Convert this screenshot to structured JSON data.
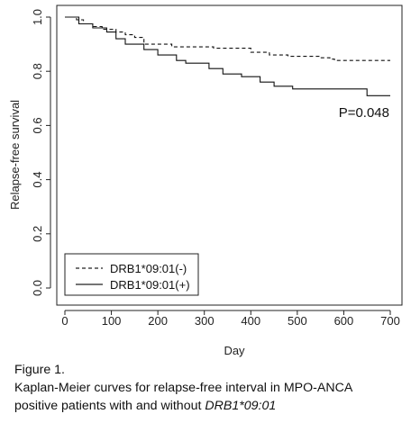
{
  "chart_data": {
    "type": "line",
    "xlabel": "Day",
    "ylabel": "Relapse-free survival",
    "xlim": [
      0,
      700
    ],
    "ylim": [
      0,
      1
    ],
    "x_ticks": [
      0,
      100,
      200,
      300,
      400,
      500,
      600,
      700
    ],
    "y_ticks": [
      0.0,
      0.2,
      0.4,
      0.6,
      0.8,
      1.0
    ],
    "grid": false,
    "legend_position": "bottom-left",
    "annotation": "P=0.048",
    "series": [
      {
        "name": "DRB1*09:01(-)",
        "style": "dashed",
        "x": [
          0,
          25,
          40,
          60,
          80,
          110,
          130,
          150,
          170,
          230,
          320,
          400,
          440,
          480,
          550,
          570,
          580,
          600,
          700
        ],
        "y": [
          1.0,
          0.99,
          0.975,
          0.965,
          0.955,
          0.945,
          0.935,
          0.925,
          0.9,
          0.89,
          0.885,
          0.87,
          0.86,
          0.855,
          0.85,
          0.845,
          0.84,
          0.84,
          0.84
        ]
      },
      {
        "name": "DRB1*09:01(+)",
        "style": "solid",
        "x": [
          0,
          30,
          60,
          90,
          110,
          130,
          170,
          200,
          240,
          260,
          310,
          340,
          380,
          420,
          450,
          490,
          640,
          650,
          700
        ],
        "y": [
          1.0,
          0.975,
          0.96,
          0.945,
          0.92,
          0.9,
          0.88,
          0.86,
          0.84,
          0.83,
          0.81,
          0.79,
          0.78,
          0.76,
          0.745,
          0.735,
          0.735,
          0.71,
          0.71
        ]
      }
    ]
  },
  "caption": {
    "line1": "Figure 1.",
    "line2": "Kaplan-Meier curves for relapse-free interval in MPO-ANCA",
    "line3_prefix": "positive patients with and without ",
    "line3_gene": "DRB1*09:01"
  }
}
